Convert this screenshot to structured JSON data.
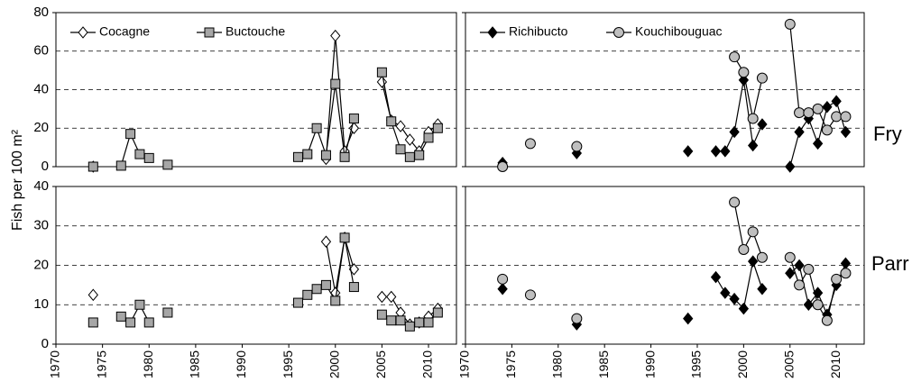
{
  "ylabel": "Fish per 100 m²",
  "row_labels": [
    "Fry",
    "Parr"
  ],
  "chart_data": [
    {
      "type": "line",
      "xlim": [
        1970,
        2013
      ],
      "ylim": [
        0,
        80
      ],
      "yticks": [
        0,
        20,
        40,
        60,
        80
      ],
      "grid": true,
      "tick_labels": true,
      "legend": "upper left",
      "x": [
        1974,
        null,
        1977,
        1978,
        1979,
        1980,
        null,
        1982,
        null,
        1996,
        1997,
        1998,
        1999,
        2000,
        2001,
        2002,
        null,
        2005,
        2006,
        2007,
        2008,
        2009,
        2010,
        2011
      ],
      "series": [
        {
          "name": "Cocagne",
          "color": "#ffffff",
          "marker": "diamond",
          "values": [
            0,
            null,
            null,
            null,
            null,
            null,
            null,
            null,
            null,
            null,
            null,
            null,
            4,
            68,
            8,
            20,
            null,
            44,
            24,
            21,
            14,
            8,
            18,
            22
          ]
        },
        {
          "name": "Buctouche",
          "color": "#a6a6a6",
          "marker": "square",
          "values": [
            0,
            null,
            0.5,
            17,
            6.5,
            4.5,
            null,
            1,
            null,
            5,
            6.5,
            20,
            6,
            43,
            5,
            25,
            null,
            49,
            23.5,
            9,
            5,
            6,
            15,
            20
          ]
        }
      ]
    },
    {
      "type": "line",
      "xlim": [
        1970,
        2013
      ],
      "ylim": [
        0,
        80
      ],
      "yticks": [
        0,
        20,
        40,
        60,
        80
      ],
      "grid": true,
      "tick_labels": false,
      "legend": "upper left",
      "x": [
        1974,
        null,
        1977,
        null,
        1982,
        null,
        1994,
        null,
        1997,
        1998,
        1999,
        2000,
        2001,
        2002,
        null,
        2005,
        2006,
        2007,
        2008,
        2009,
        2010,
        2011
      ],
      "series": [
        {
          "name": "Richibucto",
          "color": "#000000",
          "marker": "diamond",
          "values": [
            2,
            null,
            null,
            null,
            7,
            null,
            8,
            null,
            8,
            8,
            18,
            45,
            11,
            22,
            null,
            0,
            18,
            25,
            12,
            31,
            34,
            18
          ]
        },
        {
          "name": "Kouchibouguac",
          "color": "#bfbfbf",
          "marker": "circle",
          "values": [
            0,
            null,
            12,
            null,
            10.5,
            null,
            null,
            null,
            null,
            null,
            57,
            49,
            25,
            46,
            null,
            74,
            28,
            28,
            30,
            19,
            26,
            26
          ]
        }
      ]
    },
    {
      "type": "line",
      "xlim": [
        1970,
        2013
      ],
      "ylim": [
        0,
        40
      ],
      "yticks": [
        0,
        10,
        20,
        30,
        40
      ],
      "xticks": [
        1970,
        1975,
        1980,
        1985,
        1990,
        1995,
        2000,
        2005,
        2010
      ],
      "grid": true,
      "tick_labels": true,
      "x": [
        1974,
        null,
        1977,
        1978,
        1979,
        1980,
        null,
        1982,
        null,
        1996,
        1997,
        1998,
        1999,
        2000,
        2001,
        2002,
        null,
        2005,
        2006,
        2007,
        2008,
        2009,
        2010,
        2011
      ],
      "series": [
        {
          "color": "#ffffff",
          "marker": "diamond",
          "values": [
            12.5,
            null,
            null,
            null,
            null,
            null,
            null,
            null,
            null,
            null,
            null,
            null,
            26,
            13,
            27,
            19,
            null,
            12,
            12,
            8,
            5,
            5.5,
            7,
            9
          ]
        },
        {
          "color": "#a6a6a6",
          "marker": "square",
          "values": [
            5.5,
            null,
            7,
            5.5,
            10,
            5.5,
            null,
            8,
            null,
            10.5,
            12.5,
            14,
            15,
            11,
            27,
            14.5,
            null,
            7.5,
            6,
            6,
            4.5,
            5.5,
            5.5,
            8
          ]
        }
      ]
    },
    {
      "type": "line",
      "xlim": [
        1970,
        2013
      ],
      "ylim": [
        0,
        40
      ],
      "yticks": [
        0,
        10,
        20,
        30,
        40
      ],
      "xticks": [
        1970,
        1975,
        1980,
        1985,
        1990,
        1995,
        2000,
        2005,
        2010
      ],
      "grid": true,
      "tick_labels": false,
      "x": [
        1974,
        null,
        1977,
        null,
        1982,
        null,
        1994,
        null,
        1997,
        1998,
        1999,
        2000,
        2001,
        2002,
        null,
        2005,
        2006,
        2007,
        2008,
        2009,
        2010,
        2011
      ],
      "series": [
        {
          "color": "#000000",
          "marker": "diamond",
          "values": [
            14,
            null,
            null,
            null,
            5,
            null,
            6.5,
            null,
            17,
            13,
            11.5,
            9,
            21,
            14,
            null,
            18,
            20,
            10,
            13,
            7.5,
            15,
            20.5
          ]
        },
        {
          "color": "#bfbfbf",
          "marker": "circle",
          "values": [
            16.5,
            null,
            12.5,
            null,
            6.5,
            null,
            null,
            null,
            null,
            null,
            36,
            24,
            28.5,
            22,
            null,
            22,
            15,
            19,
            10,
            6,
            16.5,
            18
          ]
        }
      ]
    }
  ]
}
